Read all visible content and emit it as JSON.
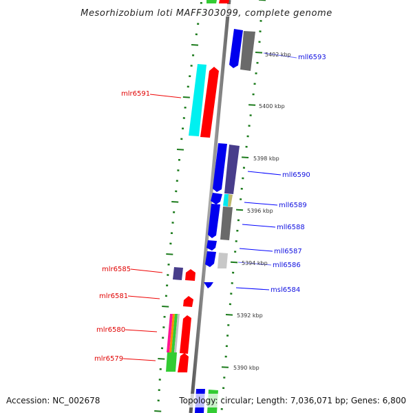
{
  "title": "Mesorhizobium loti MAFF303099, complete genome",
  "footer": {
    "accession": "Accession: NC_002678",
    "summary": "Topology: circular; Length: 7,036,071 bp; Genes: 6,800"
  },
  "scale_labels": [
    "5402 kbp",
    "5400 kbp",
    "5398 kbp",
    "5396 kbp",
    "5394 kbp",
    "5392 kbp",
    "5390 kbp"
  ],
  "forward_genes": [
    "mlr6591",
    "mlr6585",
    "mlr6581",
    "mlr6580",
    "mlr6579"
  ],
  "reverse_genes": [
    "mll6593",
    "mll6590",
    "mll6589",
    "mll6588",
    "mll6587",
    "mll6586",
    "msl6584"
  ],
  "colors": {
    "forward": "#ff0000",
    "reverse": "#0000ff",
    "tick": "#1a7a1a",
    "backbone": "#808080"
  }
}
